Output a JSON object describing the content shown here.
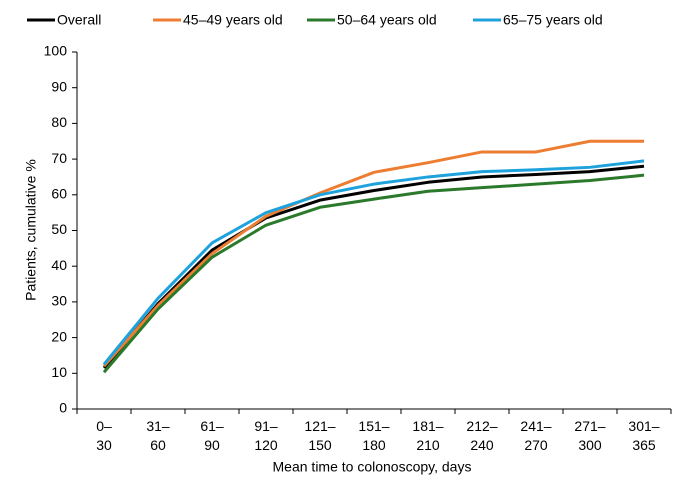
{
  "chart_data": {
    "type": "line",
    "x_label": "Mean time to colonoscopy, days",
    "y_label": "Patients, cumulative %",
    "categories": [
      "0–\n30",
      "31–\n60",
      "61–\n90",
      "91–\n120",
      "121–\n150",
      "151–\n180",
      "181–\n210",
      "212–\n240",
      "241–\n270",
      "271–\n300",
      "301–\n365"
    ],
    "series": [
      {
        "name": "Overall",
        "color": "#000000",
        "values": [
          11.5,
          29.5,
          44.5,
          53.5,
          58.5,
          61.2,
          63.5,
          65,
          65.7,
          66.5,
          68
        ]
      },
      {
        "name": "45–49 years old",
        "color": "#ed7d31",
        "values": [
          12,
          29,
          43.5,
          54,
          60.5,
          66.3,
          69,
          72,
          72,
          75,
          75
        ]
      },
      {
        "name": "50–64 years old",
        "color": "#2b7a2b",
        "values": [
          10.3,
          28,
          42.5,
          51.5,
          56.5,
          58.8,
          61,
          62,
          63,
          64,
          65.5
        ]
      },
      {
        "name": "65–75 years old",
        "color": "#1ea2dc",
        "values": [
          12.5,
          31,
          46.5,
          55,
          60,
          63,
          65,
          66.5,
          67,
          67.7,
          69.5
        ]
      }
    ],
    "ylim": [
      0,
      100
    ],
    "yticks": [
      0,
      10,
      20,
      30,
      40,
      50,
      60,
      70,
      80,
      90,
      100
    ],
    "grid": false
  }
}
